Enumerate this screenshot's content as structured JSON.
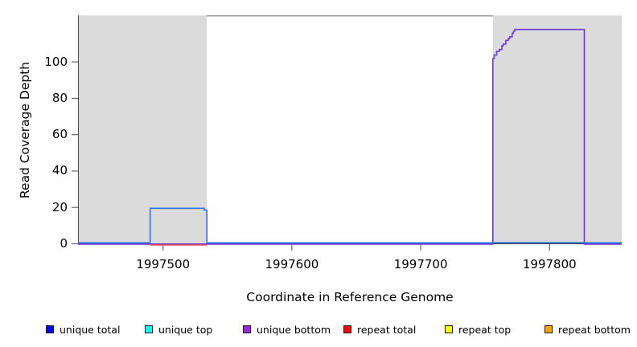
{
  "chart_data": {
    "type": "line",
    "title": "",
    "xlabel": "Coordinate in Reference Genome",
    "ylabel": "Read Coverage Depth",
    "xlim": [
      1997434,
      1997856
    ],
    "ylim": [
      0,
      125
    ],
    "x_ticks": [
      1997500,
      1997600,
      1997700,
      1997800
    ],
    "y_ticks": [
      0,
      20,
      40,
      60,
      80,
      100
    ],
    "grid": false,
    "shaded_regions": [
      {
        "name": "left-masked-region",
        "x0": 1997434,
        "x1": 1997534,
        "color": "#dbdbdb"
      },
      {
        "name": "right-masked-region",
        "x0": 1997756,
        "x1": 1997856,
        "color": "#dbdbdb"
      }
    ],
    "series": [
      {
        "name": "unique bottom",
        "color": "#6a3bd8",
        "points": [
          [
            1997434,
            0
          ],
          [
            1997756,
            0
          ],
          [
            1997756,
            102
          ],
          [
            1997757,
            102
          ],
          [
            1997757,
            104
          ],
          [
            1997759,
            104
          ],
          [
            1997759,
            106
          ],
          [
            1997761,
            106
          ],
          [
            1997761,
            107
          ],
          [
            1997763,
            107
          ],
          [
            1997763,
            109
          ],
          [
            1997764,
            109
          ],
          [
            1997764,
            110
          ],
          [
            1997766,
            110
          ],
          [
            1997766,
            112
          ],
          [
            1997768,
            112
          ],
          [
            1997768,
            113
          ],
          [
            1997769,
            113
          ],
          [
            1997769,
            114
          ],
          [
            1997771,
            114
          ],
          [
            1997771,
            116
          ],
          [
            1997772,
            116
          ],
          [
            1997772,
            117
          ],
          [
            1997773,
            117
          ],
          [
            1997773,
            118
          ],
          [
            1997774,
            118
          ],
          [
            1997827,
            118
          ],
          [
            1997827,
            0
          ],
          [
            1997856,
            0
          ]
        ]
      },
      {
        "name": "repeat total",
        "color": "#ee4455",
        "points": [
          [
            1997490,
            0
          ],
          [
            1997534,
            0
          ]
        ]
      },
      {
        "name": "green baseline segment",
        "color": "#5cb85c",
        "points": [
          [
            1997756,
            0
          ],
          [
            1997827,
            0
          ]
        ]
      },
      {
        "name": "unique total",
        "color": "#3273e3",
        "points": [
          [
            1997434,
            0
          ],
          [
            1997490,
            0
          ],
          [
            1997490,
            19
          ],
          [
            1997532,
            19
          ],
          [
            1997532,
            18
          ],
          [
            1997534,
            18
          ],
          [
            1997534,
            0
          ],
          [
            1997856,
            0
          ]
        ]
      }
    ],
    "legend": {
      "position": "bottom",
      "entries": [
        {
          "label": "unique total",
          "color": "#0000ff"
        },
        {
          "label": "unique top",
          "color": "#00ffff"
        },
        {
          "label": "unique bottom",
          "color": "#a020f0"
        },
        {
          "label": "repeat total",
          "color": "#ff0000"
        },
        {
          "label": "repeat top",
          "color": "#ffff00"
        },
        {
          "label": "repeat bottom",
          "color": "#ffa500"
        }
      ]
    },
    "frame": {
      "top_border_color": "#999999",
      "left_border_color": "#4d4d4d",
      "bottom_border_color": "#333333",
      "tick_color": "#666666"
    }
  }
}
